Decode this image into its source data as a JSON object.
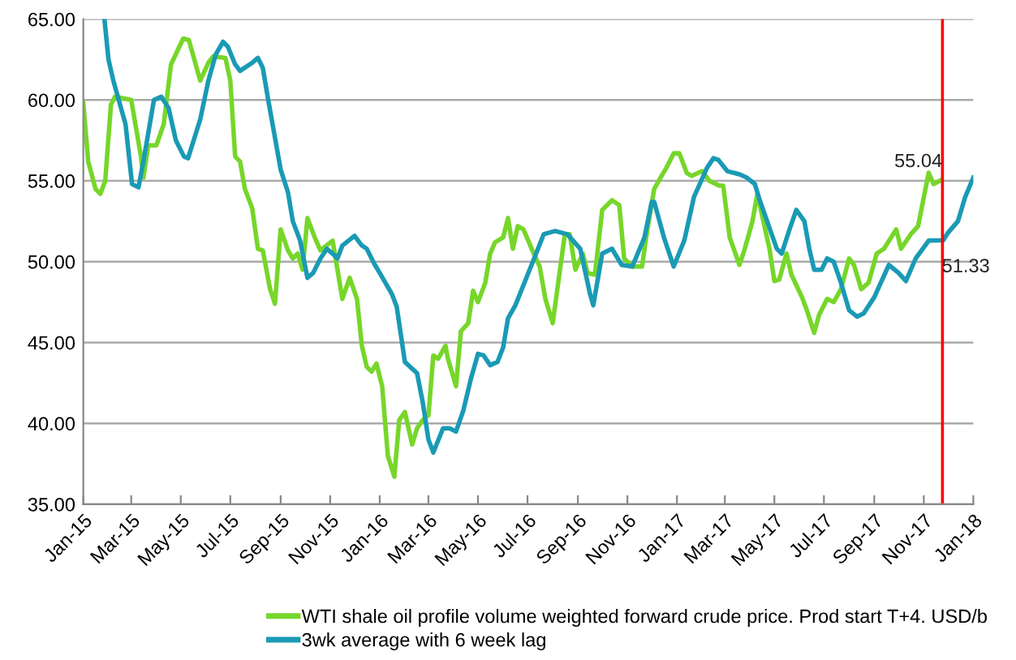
{
  "chart_data": {
    "type": "line",
    "series": [
      {
        "name": "WTI shale oil profile volume weighted forward crude price. Prod start T+4. USD/b",
        "color": "#77d62a",
        "x": [
          "2015-01-01",
          "2015-01-07",
          "2015-01-16",
          "2015-01-22",
          "2015-01-28",
          "2015-02-04",
          "2015-02-09",
          "2015-03-01",
          "2015-03-13",
          "2015-03-16",
          "2015-03-22",
          "2015-04-01",
          "2015-04-10",
          "2015-04-19",
          "2015-05-04",
          "2015-05-11",
          "2015-05-25",
          "2015-06-04",
          "2015-06-10",
          "2015-06-25",
          "2015-07-01",
          "2015-07-07",
          "2015-07-13",
          "2015-07-19",
          "2015-07-28",
          "2015-08-04",
          "2015-08-10",
          "2015-08-19",
          "2015-08-25",
          "2015-09-01",
          "2015-09-10",
          "2015-09-16",
          "2015-09-22",
          "2015-09-28",
          "2015-10-04",
          "2015-10-13",
          "2015-10-20",
          "2015-11-04",
          "2015-11-10",
          "2015-11-16",
          "2015-11-25",
          "2015-12-04",
          "2015-12-10",
          "2015-12-16",
          "2015-12-22",
          "2015-12-28",
          "2016-01-04",
          "2016-01-11",
          "2016-01-19",
          "2016-01-25",
          "2016-02-01",
          "2016-02-10",
          "2016-02-16",
          "2016-02-23",
          "2016-03-01",
          "2016-03-07",
          "2016-03-13",
          "2016-03-22",
          "2016-03-25",
          "2016-04-04",
          "2016-04-10",
          "2016-04-19",
          "2016-04-25",
          "2016-05-01",
          "2016-05-10",
          "2016-05-16",
          "2016-05-22",
          "2016-06-01",
          "2016-06-07",
          "2016-06-13",
          "2016-06-19",
          "2016-06-26",
          "2016-07-07",
          "2016-07-16",
          "2016-07-23",
          "2016-08-01",
          "2016-08-10",
          "2016-08-16",
          "2016-08-22",
          "2016-08-29",
          "2016-09-07",
          "2016-09-13",
          "2016-09-22",
          "2016-10-01",
          "2016-10-13",
          "2016-10-22",
          "2016-10-28",
          "2016-11-07",
          "2016-11-19",
          "2016-11-25",
          "2016-12-04",
          "2016-12-13",
          "2016-12-19",
          "2016-12-28",
          "2017-01-04",
          "2017-01-13",
          "2017-01-19",
          "2017-02-01",
          "2017-02-10",
          "2017-02-22",
          "2017-02-27",
          "2017-03-07",
          "2017-03-19",
          "2017-03-25",
          "2017-04-04",
          "2017-04-10",
          "2017-04-25",
          "2017-05-01",
          "2017-05-07",
          "2017-05-16",
          "2017-05-22",
          "2017-06-04",
          "2017-06-10",
          "2017-06-19",
          "2017-06-25",
          "2017-07-05",
          "2017-07-13",
          "2017-07-22",
          "2017-08-01",
          "2017-08-07",
          "2017-08-16",
          "2017-08-25",
          "2017-09-04",
          "2017-09-13",
          "2017-09-28",
          "2017-10-04",
          "2017-10-16",
          "2017-10-25",
          "2017-11-07",
          "2017-11-13",
          "2017-11-22"
        ],
        "values": [
          59.8,
          56.2,
          54.5,
          54.2,
          55.0,
          59.7,
          60.2,
          60.0,
          56.5,
          55.2,
          57.2,
          57.2,
          58.5,
          62.2,
          63.8,
          63.7,
          61.2,
          62.3,
          62.7,
          62.6,
          61.2,
          56.5,
          56.2,
          54.5,
          53.3,
          50.8,
          50.7,
          48.3,
          47.4,
          52.0,
          50.7,
          50.2,
          50.5,
          49.5,
          52.7,
          51.5,
          50.7,
          51.3,
          49.5,
          47.7,
          49.0,
          47.7,
          44.8,
          43.5,
          43.2,
          43.7,
          42.3,
          38.0,
          36.7,
          40.2,
          40.7,
          38.7,
          39.7,
          40.2,
          40.5,
          44.2,
          44.0,
          44.8,
          44.0,
          42.3,
          45.7,
          46.2,
          48.2,
          47.5,
          48.7,
          50.5,
          51.2,
          51.5,
          52.7,
          50.8,
          52.2,
          52.0,
          50.7,
          49.7,
          47.7,
          46.2,
          49.5,
          51.7,
          51.7,
          49.5,
          50.5,
          49.3,
          49.2,
          53.2,
          53.8,
          53.5,
          50.2,
          49.7,
          49.7,
          51.8,
          54.5,
          55.3,
          55.8,
          56.7,
          56.7,
          55.5,
          55.3,
          55.6,
          55.0,
          54.7,
          54.7,
          51.5,
          49.8,
          50.7,
          52.5,
          54.2,
          50.8,
          48.8,
          48.9,
          50.5,
          49.2,
          47.8,
          47.0,
          45.6,
          46.7,
          47.7,
          47.5,
          48.3,
          50.2,
          49.8,
          48.3,
          48.7,
          50.5,
          50.8,
          52.0,
          50.8,
          51.7,
          52.2,
          55.5,
          54.8,
          55.04
        ]
      },
      {
        "name": "3wk average with 6 week lag",
        "color": "#1a9ab4",
        "x": [
          "2015-01-27",
          "2015-02-01",
          "2015-02-07",
          "2015-02-22",
          "2015-03-02",
          "2015-03-10",
          "2015-03-16",
          "2015-03-29",
          "2015-04-07",
          "2015-04-16",
          "2015-04-25",
          "2015-05-05",
          "2015-05-10",
          "2015-05-25",
          "2015-06-04",
          "2015-06-13",
          "2015-06-22",
          "2015-06-28",
          "2015-07-07",
          "2015-07-13",
          "2015-07-19",
          "2015-07-28",
          "2015-08-04",
          "2015-08-10",
          "2015-08-16",
          "2015-09-01",
          "2015-09-10",
          "2015-09-16",
          "2015-09-25",
          "2015-10-04",
          "2015-10-11",
          "2015-10-20",
          "2015-10-28",
          "2015-11-04",
          "2015-11-10",
          "2015-11-16",
          "2015-12-01",
          "2015-12-10",
          "2015-12-16",
          "2015-12-25",
          "2016-01-01",
          "2016-01-16",
          "2016-01-22",
          "2016-02-01",
          "2016-02-16",
          "2016-02-23",
          "2016-03-01",
          "2016-03-07",
          "2016-03-19",
          "2016-03-27",
          "2016-04-04",
          "2016-04-13",
          "2016-04-22",
          "2016-05-01",
          "2016-05-08",
          "2016-05-16",
          "2016-05-25",
          "2016-06-01",
          "2016-06-07",
          "2016-06-16",
          "2016-06-28",
          "2016-07-10",
          "2016-07-21",
          "2016-07-28",
          "2016-08-04",
          "2016-08-19",
          "2016-09-04",
          "2016-09-16",
          "2016-09-20",
          "2016-10-01",
          "2016-10-13",
          "2016-10-25",
          "2016-11-07",
          "2016-11-22",
          "2016-12-01",
          "2016-12-04",
          "2016-12-16",
          "2016-12-28",
          "2017-01-10",
          "2017-01-22",
          "2017-02-07",
          "2017-02-15",
          "2017-02-21",
          "2017-03-04",
          "2017-03-19",
          "2017-03-28",
          "2017-04-07",
          "2017-04-13",
          "2017-04-20",
          "2017-05-04",
          "2017-05-10",
          "2017-05-19",
          "2017-05-28",
          "2017-06-07",
          "2017-06-13",
          "2017-06-19",
          "2017-06-28",
          "2017-07-05",
          "2017-07-13",
          "2017-07-22",
          "2017-08-01",
          "2017-08-11",
          "2017-08-19",
          "2017-09-01",
          "2017-09-19",
          "2017-10-01",
          "2017-10-10",
          "2017-10-22",
          "2017-11-07",
          "2017-11-25",
          "2017-12-01",
          "2017-12-13",
          "2017-12-22",
          "2018-01-01"
        ],
        "values": [
          65.0,
          62.5,
          61.2,
          58.5,
          54.8,
          54.6,
          56.2,
          60.0,
          60.2,
          59.5,
          57.5,
          56.5,
          56.4,
          58.8,
          61.2,
          62.8,
          63.6,
          63.3,
          62.2,
          61.8,
          62.0,
          62.3,
          62.6,
          62.0,
          60.2,
          55.7,
          54.3,
          52.5,
          51.3,
          49.0,
          49.3,
          50.2,
          50.8,
          50.5,
          50.2,
          51.0,
          51.6,
          51.0,
          50.8,
          49.9,
          49.3,
          48.0,
          47.2,
          43.8,
          43.1,
          41.3,
          39.0,
          38.2,
          39.7,
          39.7,
          39.5,
          40.8,
          42.7,
          44.3,
          44.2,
          43.6,
          43.8,
          44.7,
          46.5,
          47.3,
          48.8,
          50.3,
          51.7,
          51.8,
          51.9,
          51.7,
          50.8,
          48.0,
          47.3,
          50.5,
          50.8,
          49.8,
          49.7,
          51.5,
          53.7,
          53.7,
          51.5,
          49.7,
          51.3,
          54.0,
          55.8,
          56.4,
          56.3,
          55.6,
          55.4,
          55.2,
          54.8,
          53.8,
          52.8,
          50.8,
          50.5,
          51.9,
          53.2,
          52.5,
          50.8,
          49.5,
          49.5,
          50.2,
          50.0,
          48.7,
          47.0,
          46.6,
          46.8,
          47.8,
          49.8,
          49.3,
          48.8,
          50.2,
          51.3,
          51.33,
          51.8,
          52.5,
          54.0,
          55.2
        ]
      }
    ],
    "xlim": [
      "2015-01-01",
      "2018-01-01"
    ],
    "xticks": [
      {
        "value": "2015-01-01",
        "label": "Jan-15"
      },
      {
        "value": "2015-03-01",
        "label": "Mar-15"
      },
      {
        "value": "2015-05-01",
        "label": "May-15"
      },
      {
        "value": "2015-07-01",
        "label": "Jul-15"
      },
      {
        "value": "2015-09-01",
        "label": "Sep-15"
      },
      {
        "value": "2015-11-01",
        "label": "Nov-15"
      },
      {
        "value": "2016-01-01",
        "label": "Jan-16"
      },
      {
        "value": "2016-03-01",
        "label": "Mar-16"
      },
      {
        "value": "2016-05-01",
        "label": "May-16"
      },
      {
        "value": "2016-07-01",
        "label": "Jul-16"
      },
      {
        "value": "2016-09-01",
        "label": "Sep-16"
      },
      {
        "value": "2016-11-01",
        "label": "Nov-16"
      },
      {
        "value": "2017-01-01",
        "label": "Jan-17"
      },
      {
        "value": "2017-03-01",
        "label": "Mar-17"
      },
      {
        "value": "2017-05-01",
        "label": "May-17"
      },
      {
        "value": "2017-07-01",
        "label": "Jul-17"
      },
      {
        "value": "2017-09-01",
        "label": "Sep-17"
      },
      {
        "value": "2017-11-01",
        "label": "Nov-17"
      },
      {
        "value": "2018-01-01",
        "label": "Jan-18"
      }
    ],
    "ylim": [
      35,
      65
    ],
    "yticks": [
      {
        "value": 35,
        "label": "35.00"
      },
      {
        "value": 40,
        "label": "40.00"
      },
      {
        "value": 45,
        "label": "45.00"
      },
      {
        "value": 50,
        "label": "50.00"
      },
      {
        "value": 55,
        "label": "55.00"
      },
      {
        "value": 60,
        "label": "60.00"
      },
      {
        "value": 65,
        "label": "65.00"
      }
    ],
    "ref_lines": [
      {
        "axis": "x",
        "value": "2017-11-24",
        "color": "#ff0000"
      }
    ],
    "annotations": [
      {
        "text": "55.04",
        "x": "2017-11-22",
        "y": 55.04
      },
      {
        "text": "51.33",
        "x": "2017-11-25",
        "y": 51.33
      }
    ],
    "grid": "y",
    "legend": "bottom",
    "marker": "none",
    "line_style": "solid"
  }
}
